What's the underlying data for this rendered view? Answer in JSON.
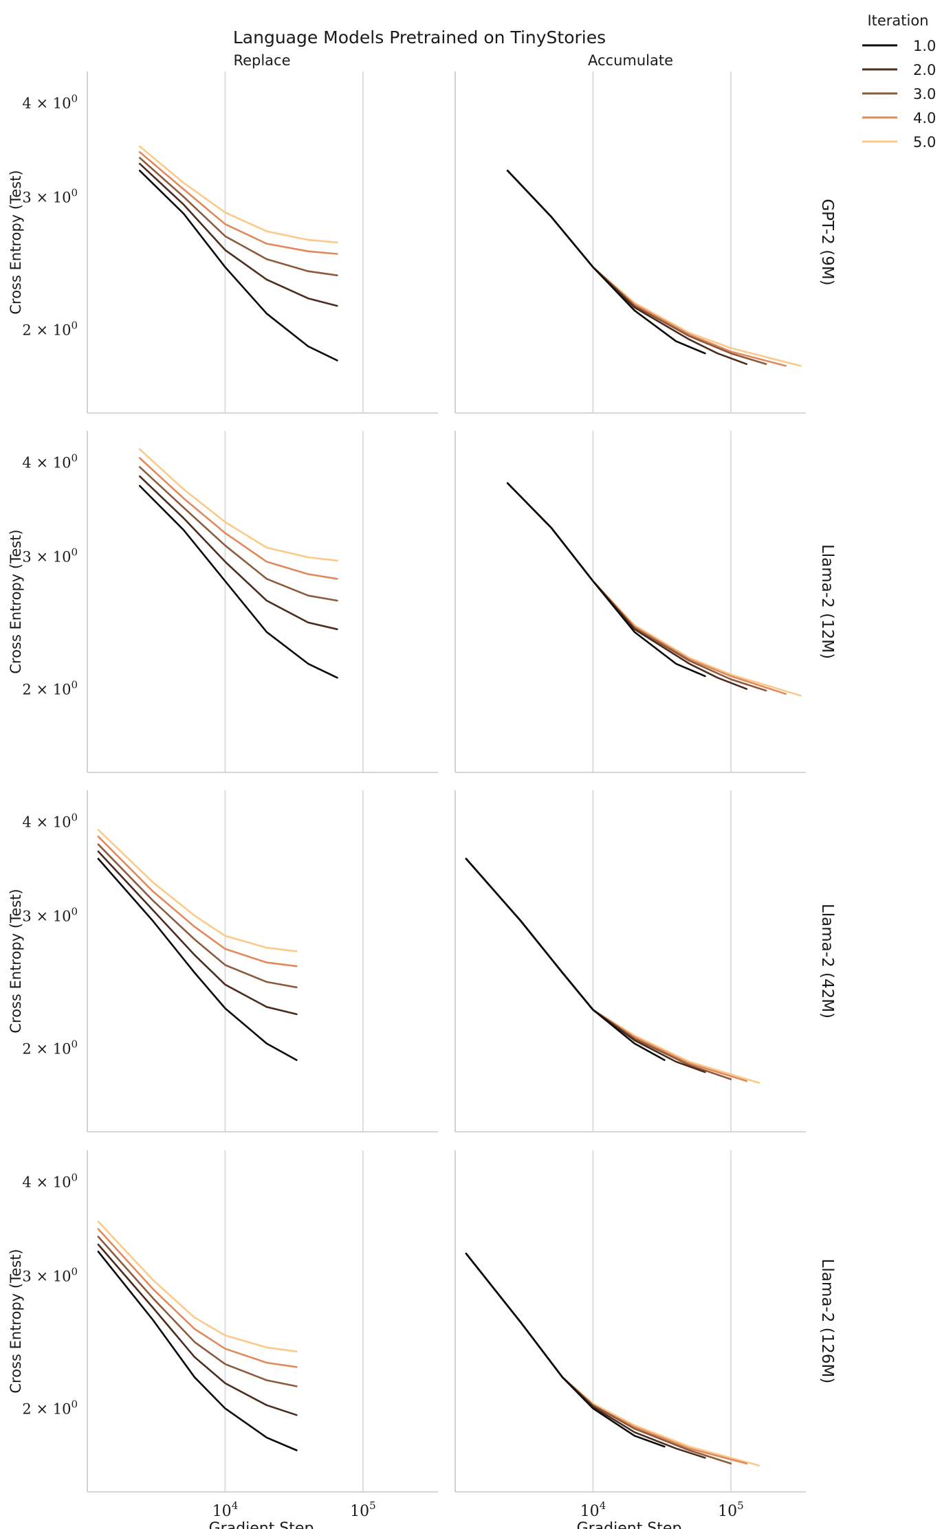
{
  "title": "Language Models Pretrained on TinyStories",
  "legend": {
    "title": "Iteration",
    "items": [
      {
        "label": "1.0",
        "color": "#0b0b0b"
      },
      {
        "label": "2.0",
        "color": "#4b2c1e"
      },
      {
        "label": "3.0",
        "color": "#8c5a3c"
      },
      {
        "label": "4.0",
        "color": "#e0895c"
      },
      {
        "label": "5.0",
        "color": "#fdc989"
      }
    ]
  },
  "columns": [
    "Replace",
    "Accumulate"
  ],
  "rows": [
    "GPT-2 (9M)",
    "Llama-2 (12M)",
    "Llama-2 (42M)",
    "Llama-2 (126M)"
  ],
  "ylabel": "Cross Entropy (Test)",
  "xlabel": "Gradient Step",
  "xticks": [
    {
      "value": 10000,
      "base": "10",
      "exp": "4"
    },
    {
      "value": 100000,
      "base": "10",
      "exp": "5"
    }
  ],
  "yticks": [
    {
      "value": 2,
      "label": "2 × 10",
      "exp": "0"
    },
    {
      "value": 3,
      "label": "3 × 10",
      "exp": "0"
    },
    {
      "value": 4,
      "label": "4 × 10",
      "exp": "0"
    }
  ],
  "chart_data": {
    "type": "line",
    "title": "Language Models Pretrained on TinyStories",
    "xlabel": "Gradient Step",
    "ylabel": "Cross Entropy (Test)",
    "xscale": "log",
    "yscale": "log",
    "xlim": [
      1000,
      500000
    ],
    "ylim": [
      1.55,
      4.4
    ],
    "legend_position": "top-right",
    "grid": "vertical",
    "facets": [
      {
        "row": "GPT-2 (9M)",
        "col": "Replace",
        "series": [
          {
            "name": "1.0",
            "x": [
              2400,
              5000,
              10000,
              20000,
              40000,
              65000
            ],
            "y": [
              3.25,
              2.85,
              2.42,
              2.1,
              1.9,
              1.82
            ]
          },
          {
            "name": "2.0",
            "x": [
              2400,
              5000,
              10000,
              20000,
              40000,
              65000
            ],
            "y": [
              3.32,
              2.93,
              2.55,
              2.33,
              2.2,
              2.15
            ]
          },
          {
            "name": "3.0",
            "x": [
              2400,
              5000,
              10000,
              20000,
              40000,
              65000
            ],
            "y": [
              3.38,
              3.0,
              2.66,
              2.48,
              2.39,
              2.36
            ]
          },
          {
            "name": "4.0",
            "x": [
              2400,
              5000,
              10000,
              20000,
              40000,
              65000
            ],
            "y": [
              3.44,
              3.07,
              2.76,
              2.6,
              2.54,
              2.52
            ]
          },
          {
            "name": "5.0",
            "x": [
              2400,
              5000,
              10000,
              20000,
              40000,
              65000
            ],
            "y": [
              3.5,
              3.13,
              2.86,
              2.7,
              2.63,
              2.61
            ]
          }
        ]
      },
      {
        "row": "GPT-2 (9M)",
        "col": "Accumulate",
        "series": [
          {
            "name": "1.0",
            "x": [
              2400,
              5000,
              10000,
              20000,
              40000,
              65000
            ],
            "y": [
              3.25,
              2.82,
              2.42,
              2.12,
              1.93,
              1.86
            ]
          },
          {
            "name": "2.0",
            "x": [
              2400,
              5000,
              10000,
              20000,
              50000,
              80000,
              130000
            ],
            "y": [
              3.25,
              2.82,
              2.42,
              2.14,
              1.94,
              1.86,
              1.8
            ]
          },
          {
            "name": "3.0",
            "x": [
              2400,
              5000,
              10000,
              20000,
              50000,
              100000,
              180000
            ],
            "y": [
              3.25,
              2.82,
              2.42,
              2.15,
              1.96,
              1.86,
              1.8
            ]
          },
          {
            "name": "4.0",
            "x": [
              2400,
              5000,
              10000,
              20000,
              50000,
              100000,
              250000
            ],
            "y": [
              3.25,
              2.82,
              2.42,
              2.16,
              1.97,
              1.87,
              1.79
            ]
          },
          {
            "name": "5.0",
            "x": [
              2400,
              5000,
              10000,
              20000,
              50000,
              100000,
              320000
            ],
            "y": [
              3.25,
              2.82,
              2.42,
              2.17,
              1.98,
              1.89,
              1.79
            ]
          }
        ]
      },
      {
        "row": "Llama-2 (12M)",
        "col": "Replace",
        "series": [
          {
            "name": "1.0",
            "x": [
              2400,
              5000,
              10000,
              20000,
              40000,
              65000
            ],
            "y": [
              3.72,
              3.25,
              2.78,
              2.38,
              2.16,
              2.07
            ]
          },
          {
            "name": "2.0",
            "x": [
              2400,
              5000,
              10000,
              20000,
              40000,
              65000
            ],
            "y": [
              3.83,
              3.37,
              2.95,
              2.62,
              2.45,
              2.4
            ]
          },
          {
            "name": "3.0",
            "x": [
              2400,
              5000,
              10000,
              20000,
              40000,
              65000
            ],
            "y": [
              3.94,
              3.48,
              3.1,
              2.8,
              2.66,
              2.62
            ]
          },
          {
            "name": "4.0",
            "x": [
              2400,
              5000,
              10000,
              20000,
              40000,
              65000
            ],
            "y": [
              4.05,
              3.58,
              3.22,
              2.95,
              2.84,
              2.8
            ]
          },
          {
            "name": "5.0",
            "x": [
              2400,
              5000,
              10000,
              20000,
              40000,
              65000
            ],
            "y": [
              4.16,
              3.68,
              3.33,
              3.08,
              2.99,
              2.96
            ]
          }
        ]
      },
      {
        "row": "Llama-2 (12M)",
        "col": "Accumulate",
        "series": [
          {
            "name": "1.0",
            "x": [
              2400,
              5000,
              10000,
              20000,
              40000,
              65000
            ],
            "y": [
              3.75,
              3.27,
              2.78,
              2.38,
              2.16,
              2.08
            ]
          },
          {
            "name": "2.0",
            "x": [
              2400,
              5000,
              10000,
              20000,
              50000,
              80000,
              130000
            ],
            "y": [
              3.75,
              3.27,
              2.78,
              2.4,
              2.16,
              2.07,
              2.0
            ]
          },
          {
            "name": "3.0",
            "x": [
              2400,
              5000,
              10000,
              20000,
              50000,
              100000,
              180000
            ],
            "y": [
              3.75,
              3.27,
              2.78,
              2.41,
              2.18,
              2.06,
              1.99
            ]
          },
          {
            "name": "4.0",
            "x": [
              2400,
              5000,
              10000,
              20000,
              50000,
              100000,
              250000
            ],
            "y": [
              3.75,
              3.27,
              2.78,
              2.42,
              2.19,
              2.08,
              1.97
            ]
          },
          {
            "name": "5.0",
            "x": [
              2400,
              5000,
              10000,
              20000,
              50000,
              100000,
              320000
            ],
            "y": [
              3.75,
              3.27,
              2.78,
              2.43,
              2.2,
              2.09,
              1.96
            ]
          }
        ]
      },
      {
        "row": "Llama-2 (42M)",
        "col": "Replace",
        "series": [
          {
            "name": "1.0",
            "x": [
              1200,
              3000,
              6000,
              10000,
              20000,
              33000
            ],
            "y": [
              3.57,
              2.95,
              2.52,
              2.26,
              2.03,
              1.93
            ]
          },
          {
            "name": "2.0",
            "x": [
              1200,
              3000,
              6000,
              10000,
              20000,
              33000
            ],
            "y": [
              3.65,
              3.05,
              2.66,
              2.43,
              2.27,
              2.22
            ]
          },
          {
            "name": "3.0",
            "x": [
              1200,
              3000,
              6000,
              10000,
              20000,
              33000
            ],
            "y": [
              3.73,
              3.14,
              2.79,
              2.58,
              2.45,
              2.41
            ]
          },
          {
            "name": "4.0",
            "x": [
              1200,
              3000,
              6000,
              10000,
              20000,
              33000
            ],
            "y": [
              3.82,
              3.23,
              2.9,
              2.71,
              2.6,
              2.57
            ]
          },
          {
            "name": "5.0",
            "x": [
              1200,
              3000,
              6000,
              10000,
              20000,
              33000
            ],
            "y": [
              3.9,
              3.32,
              3.0,
              2.82,
              2.72,
              2.69
            ]
          }
        ]
      },
      {
        "row": "Llama-2 (42M)",
        "col": "Accumulate",
        "series": [
          {
            "name": "1.0",
            "x": [
              1200,
              3000,
              6000,
              10000,
              20000,
              33000
            ],
            "y": [
              3.57,
              2.95,
              2.52,
              2.25,
              2.03,
              1.93
            ]
          },
          {
            "name": "2.0",
            "x": [
              1200,
              3000,
              6000,
              10000,
              20000,
              40000,
              65000
            ],
            "y": [
              3.57,
              2.95,
              2.52,
              2.25,
              2.05,
              1.92,
              1.86
            ]
          },
          {
            "name": "3.0",
            "x": [
              1200,
              3000,
              6000,
              10000,
              20000,
              50000,
              100000
            ],
            "y": [
              3.57,
              2.95,
              2.52,
              2.25,
              2.06,
              1.9,
              1.82
            ]
          },
          {
            "name": "4.0",
            "x": [
              1200,
              3000,
              6000,
              10000,
              20000,
              50000,
              130000
            ],
            "y": [
              3.57,
              2.95,
              2.52,
              2.25,
              2.07,
              1.91,
              1.81
            ]
          },
          {
            "name": "5.0",
            "x": [
              1200,
              3000,
              6000,
              10000,
              20000,
              50000,
              160000
            ],
            "y": [
              3.57,
              2.95,
              2.52,
              2.25,
              2.08,
              1.92,
              1.8
            ]
          }
        ]
      },
      {
        "row": "Llama-2 (126M)",
        "col": "Replace",
        "series": [
          {
            "name": "1.0",
            "x": [
              1200,
              3000,
              6000,
              10000,
              20000,
              33000
            ],
            "y": [
              3.23,
              2.62,
              2.2,
              2.0,
              1.83,
              1.76
            ]
          },
          {
            "name": "2.0",
            "x": [
              1200,
              3000,
              6000,
              10000,
              20000,
              33000
            ],
            "y": [
              3.3,
              2.72,
              2.34,
              2.16,
              2.02,
              1.96
            ]
          },
          {
            "name": "3.0",
            "x": [
              1200,
              3000,
              6000,
              10000,
              20000,
              33000
            ],
            "y": [
              3.38,
              2.8,
              2.45,
              2.29,
              2.18,
              2.14
            ]
          },
          {
            "name": "4.0",
            "x": [
              1200,
              3000,
              6000,
              10000,
              20000,
              33000
            ],
            "y": [
              3.46,
              2.88,
              2.55,
              2.4,
              2.3,
              2.27
            ]
          },
          {
            "name": "5.0",
            "x": [
              1200,
              3000,
              6000,
              10000,
              20000,
              33000
            ],
            "y": [
              3.54,
              2.96,
              2.64,
              2.5,
              2.41,
              2.38
            ]
          }
        ]
      },
      {
        "row": "Llama-2 (126M)",
        "col": "Accumulate",
        "series": [
          {
            "name": "1.0",
            "x": [
              1200,
              3000,
              6000,
              10000,
              20000,
              33000
            ],
            "y": [
              3.21,
              2.6,
              2.2,
              2.0,
              1.84,
              1.78
            ]
          },
          {
            "name": "2.0",
            "x": [
              1200,
              3000,
              6000,
              10000,
              20000,
              40000,
              65000
            ],
            "y": [
              3.21,
              2.6,
              2.2,
              2.01,
              1.86,
              1.77,
              1.72
            ]
          },
          {
            "name": "3.0",
            "x": [
              1200,
              3000,
              6000,
              10000,
              20000,
              50000,
              100000
            ],
            "y": [
              3.21,
              2.6,
              2.2,
              2.02,
              1.88,
              1.76,
              1.69
            ]
          },
          {
            "name": "4.0",
            "x": [
              1200,
              3000,
              6000,
              10000,
              20000,
              50000,
              130000
            ],
            "y": [
              3.21,
              2.6,
              2.2,
              2.02,
              1.89,
              1.77,
              1.69
            ]
          },
          {
            "name": "5.0",
            "x": [
              1200,
              3000,
              6000,
              10000,
              20000,
              50000,
              160000
            ],
            "y": [
              3.21,
              2.6,
              2.2,
              2.03,
              1.9,
              1.78,
              1.68
            ]
          }
        ]
      }
    ]
  }
}
